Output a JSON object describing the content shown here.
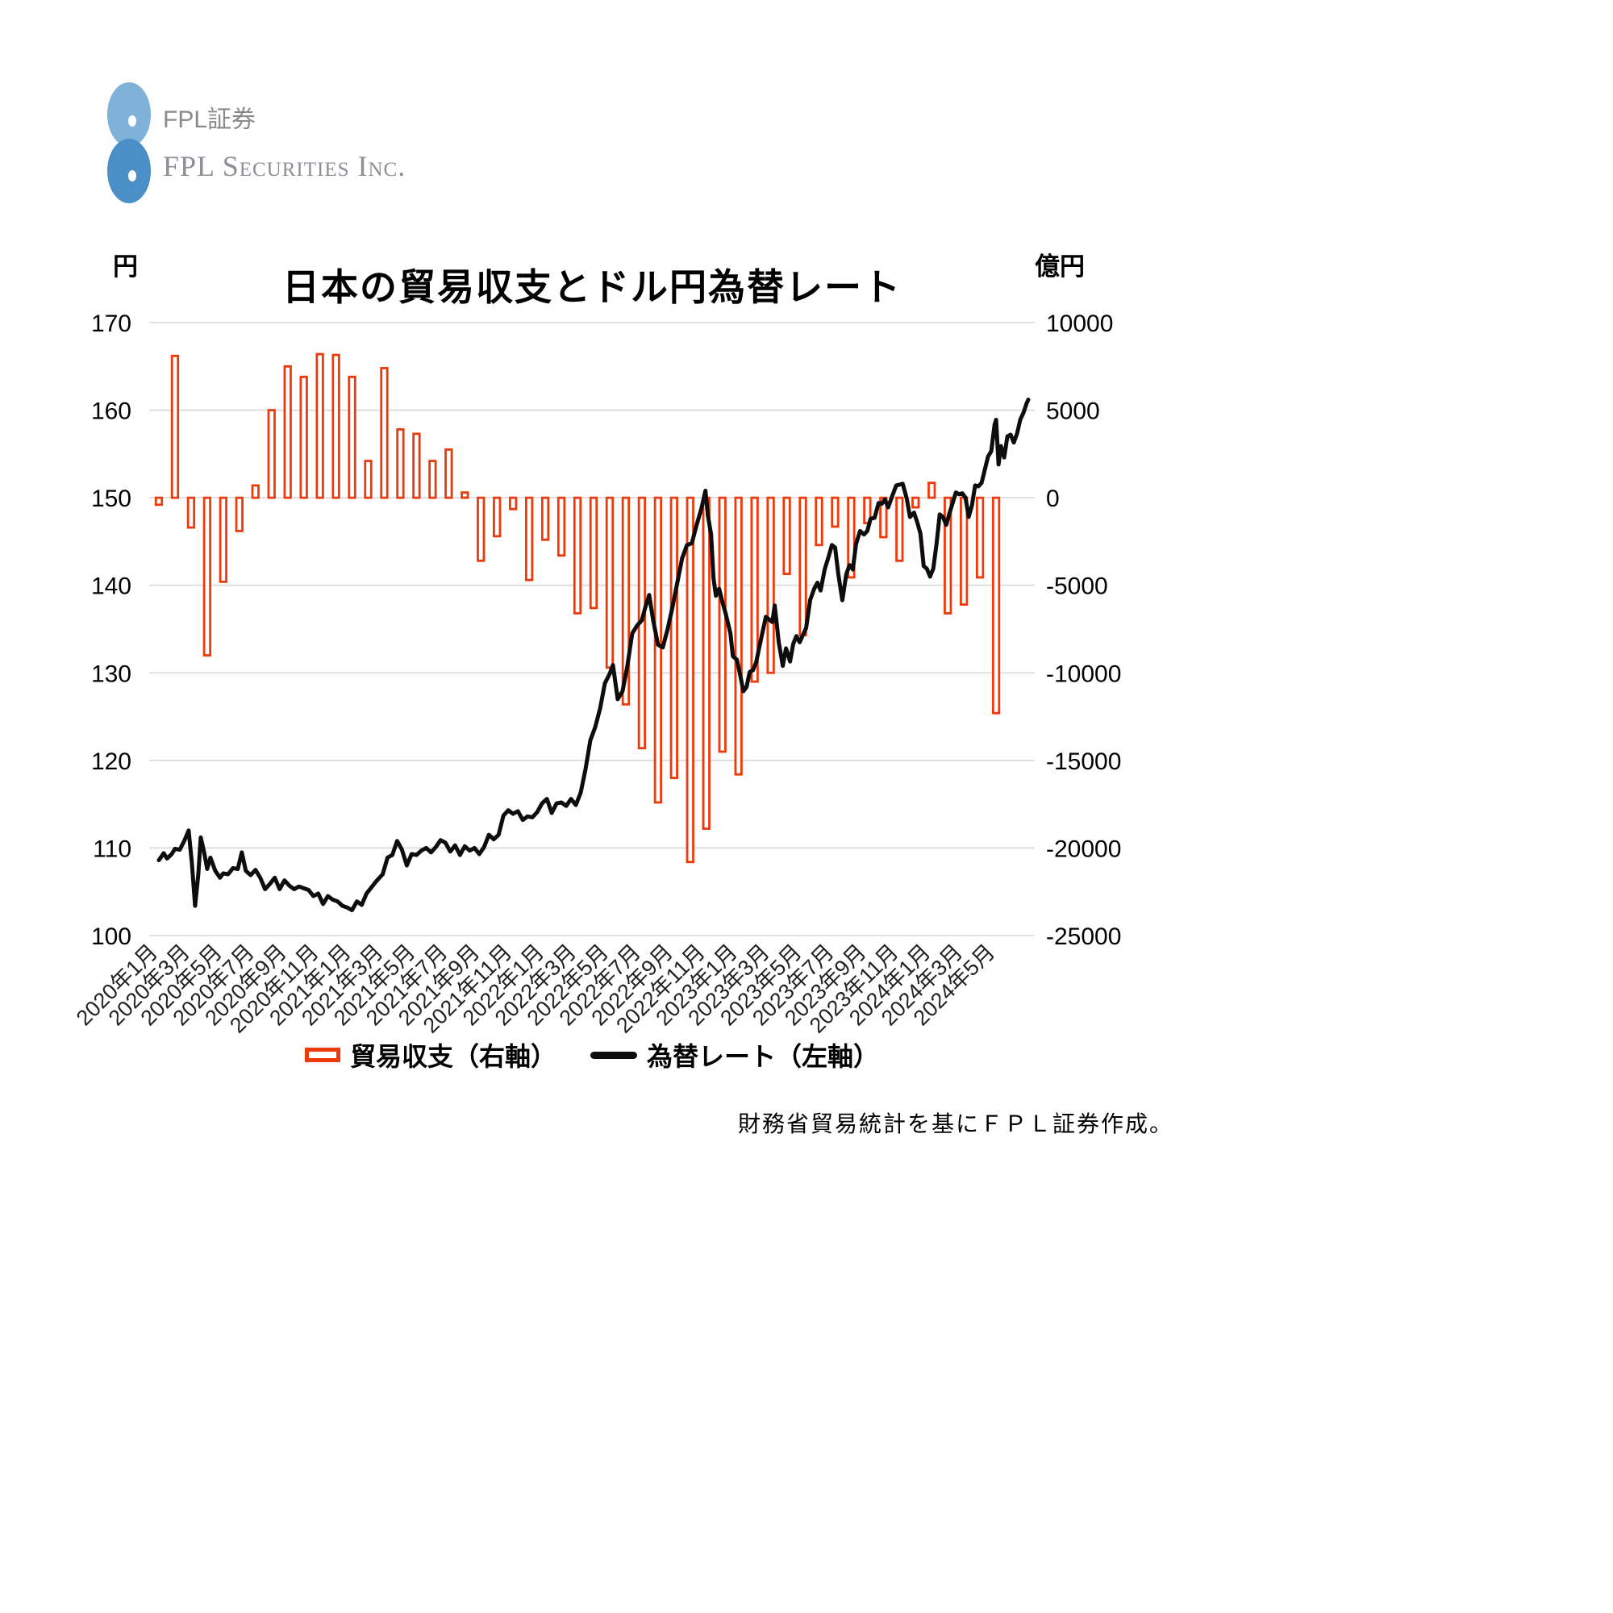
{
  "logo": {
    "jp_name": "FPL証券",
    "en_name": "FPL Securities Inc.",
    "mark_color_top": "#7fb2d9",
    "mark_color_bottom": "#4a8fc7"
  },
  "legend": {
    "bar_label": "貿易収支（右軸）",
    "line_label": "為替レート（左軸）"
  },
  "source_note": "財務省貿易統計を基にＦＰＬ証券作成。",
  "chart_data": {
    "type": "bar+line combo",
    "title": "日本の貿易収支とドル円為替レート",
    "grid": true,
    "left_axis": {
      "unit": "円",
      "min": 100,
      "max": 170,
      "ticks": [
        170,
        160,
        150,
        140,
        130,
        120,
        110,
        100
      ]
    },
    "right_axis": {
      "unit": "億円",
      "min": -25000,
      "max": 10000,
      "ticks": [
        10000,
        5000,
        0,
        -5000,
        -10000,
        -15000,
        -20000,
        -25000
      ]
    },
    "x_tick_labels": [
      "2020年1月",
      "2020年3月",
      "2020年5月",
      "2020年7月",
      "2020年9月",
      "2020年11月",
      "2021年1月",
      "2021年3月",
      "2021年5月",
      "2021年7月",
      "2021年9月",
      "2021年11月",
      "2022年1月",
      "2022年3月",
      "2022年5月",
      "2022年7月",
      "2022年9月",
      "2022年11月",
      "2023年1月",
      "2023年3月",
      "2023年5月",
      "2023年7月",
      "2023年9月",
      "2023年11月",
      "2024年1月",
      "2024年3月",
      "2024年5月"
    ],
    "bar_series": {
      "name": "貿易収支（右軸）",
      "axis": "right",
      "color": "#ee3a0b",
      "unit": "億円",
      "categories": [
        "2020-01",
        "2020-02",
        "2020-03",
        "2020-04",
        "2020-05",
        "2020-06",
        "2020-07",
        "2020-08",
        "2020-09",
        "2020-10",
        "2020-11",
        "2020-12",
        "2021-01",
        "2021-02",
        "2021-03",
        "2021-04",
        "2021-05",
        "2021-06",
        "2021-07",
        "2021-08",
        "2021-09",
        "2021-10",
        "2021-11",
        "2021-12",
        "2022-01",
        "2022-02",
        "2022-03",
        "2022-04",
        "2022-05",
        "2022-06",
        "2022-07",
        "2022-08",
        "2022-09",
        "2022-10",
        "2022-11",
        "2022-12",
        "2023-01",
        "2023-02",
        "2023-03",
        "2023-04",
        "2023-05",
        "2023-06",
        "2023-07",
        "2023-08",
        "2023-09",
        "2023-10",
        "2023-11",
        "2023-12",
        "2024-01",
        "2024-02",
        "2024-03",
        "2024-04",
        "2024-05"
      ],
      "values": [
        -400,
        8100,
        -1700,
        -9000,
        -4800,
        -1900,
        700,
        5000,
        7500,
        6900,
        8200,
        8150,
        6900,
        2100,
        7400,
        3900,
        3650,
        2100,
        2750,
        300,
        -3600,
        -2200,
        -650,
        -4700,
        -2400,
        -3300,
        -6600,
        -6300,
        -9700,
        -11800,
        -14300,
        -17400,
        -16000,
        -20800,
        -18900,
        -14500,
        -15800,
        -10500,
        -10000,
        -4350,
        -7850,
        -2700,
        -1650,
        -4550,
        -1450,
        -2250,
        -3600,
        -550,
        850,
        -6600,
        -6100,
        -4550,
        -12300
      ]
    },
    "line_series": {
      "name": "為替レート（左軸）",
      "axis": "left",
      "color": "#0d0d0d",
      "unit": "円",
      "points": [
        [
          0,
          108.6
        ],
        [
          0.3,
          109.4
        ],
        [
          0.5,
          108.8
        ],
        [
          0.8,
          109.3
        ],
        [
          1,
          109.9
        ],
        [
          1.3,
          109.8
        ],
        [
          1.6,
          110.9
        ],
        [
          1.85,
          112.0
        ],
        [
          2.05,
          108.3
        ],
        [
          2.25,
          103.4
        ],
        [
          2.45,
          107.0
        ],
        [
          2.6,
          111.2
        ],
        [
          2.8,
          109.6
        ],
        [
          3,
          107.6
        ],
        [
          3.2,
          108.9
        ],
        [
          3.5,
          107.4
        ],
        [
          3.8,
          106.6
        ],
        [
          4,
          107.1
        ],
        [
          4.3,
          107.0
        ],
        [
          4.6,
          107.7
        ],
        [
          4.9,
          107.6
        ],
        [
          5.15,
          109.5
        ],
        [
          5.4,
          107.4
        ],
        [
          5.7,
          106.9
        ],
        [
          6,
          107.5
        ],
        [
          6.3,
          106.6
        ],
        [
          6.6,
          105.3
        ],
        [
          6.9,
          105.9
        ],
        [
          7.2,
          106.6
        ],
        [
          7.5,
          105.3
        ],
        [
          7.8,
          106.3
        ],
        [
          8.1,
          105.7
        ],
        [
          8.4,
          105.3
        ],
        [
          8.7,
          105.6
        ],
        [
          9,
          105.4
        ],
        [
          9.3,
          105.2
        ],
        [
          9.6,
          104.5
        ],
        [
          9.9,
          104.8
        ],
        [
          10.2,
          103.6
        ],
        [
          10.5,
          104.5
        ],
        [
          10.8,
          104.1
        ],
        [
          11.1,
          103.9
        ],
        [
          11.4,
          103.4
        ],
        [
          11.7,
          103.2
        ],
        [
          12,
          102.9
        ],
        [
          12.3,
          103.9
        ],
        [
          12.6,
          103.5
        ],
        [
          12.9,
          104.8
        ],
        [
          13.2,
          105.5
        ],
        [
          13.5,
          106.2
        ],
        [
          13.9,
          107.0
        ],
        [
          14.2,
          108.9
        ],
        [
          14.5,
          109.2
        ],
        [
          14.8,
          110.8
        ],
        [
          15.1,
          109.8
        ],
        [
          15.4,
          108.0
        ],
        [
          15.7,
          109.3
        ],
        [
          16,
          109.2
        ],
        [
          16.3,
          109.7
        ],
        [
          16.6,
          110.0
        ],
        [
          16.9,
          109.5
        ],
        [
          17.2,
          110.1
        ],
        [
          17.5,
          110.9
        ],
        [
          17.8,
          110.6
        ],
        [
          18.1,
          109.6
        ],
        [
          18.4,
          110.3
        ],
        [
          18.7,
          109.2
        ],
        [
          19,
          110.2
        ],
        [
          19.3,
          109.7
        ],
        [
          19.6,
          110.0
        ],
        [
          19.9,
          109.3
        ],
        [
          20.2,
          110.1
        ],
        [
          20.5,
          111.5
        ],
        [
          20.8,
          111.0
        ],
        [
          21.1,
          111.5
        ],
        [
          21.4,
          113.7
        ],
        [
          21.7,
          114.3
        ],
        [
          22,
          113.9
        ],
        [
          22.3,
          114.2
        ],
        [
          22.6,
          113.2
        ],
        [
          22.9,
          113.6
        ],
        [
          23.2,
          113.5
        ],
        [
          23.5,
          114.1
        ],
        [
          23.8,
          115.1
        ],
        [
          24.1,
          115.6
        ],
        [
          24.4,
          114.0
        ],
        [
          24.7,
          115.1
        ],
        [
          25,
          115.2
        ],
        [
          25.3,
          114.8
        ],
        [
          25.6,
          115.6
        ],
        [
          25.9,
          114.9
        ],
        [
          26.2,
          116.3
        ],
        [
          26.5,
          119.0
        ],
        [
          26.8,
          122.3
        ],
        [
          27.1,
          123.8
        ],
        [
          27.4,
          125.9
        ],
        [
          27.7,
          128.8
        ],
        [
          28,
          129.9
        ],
        [
          28.2,
          130.9
        ],
        [
          28.5,
          127.0
        ],
        [
          28.8,
          127.9
        ],
        [
          29.1,
          130.8
        ],
        [
          29.4,
          134.5
        ],
        [
          29.7,
          135.4
        ],
        [
          30,
          136.0
        ],
        [
          30.2,
          137.4
        ],
        [
          30.45,
          138.9
        ],
        [
          30.7,
          136.0
        ],
        [
          31,
          133.2
        ],
        [
          31.3,
          132.9
        ],
        [
          31.6,
          135.0
        ],
        [
          31.9,
          137.5
        ],
        [
          32.2,
          140.3
        ],
        [
          32.5,
          143.1
        ],
        [
          32.8,
          144.6
        ],
        [
          33.1,
          144.8
        ],
        [
          33.4,
          146.9
        ],
        [
          33.7,
          148.8
        ],
        [
          33.95,
          150.8
        ],
        [
          34.1,
          148.0
        ],
        [
          34.3,
          145.8
        ],
        [
          34.45,
          140.8
        ],
        [
          34.6,
          138.8
        ],
        [
          34.8,
          139.6
        ],
        [
          35,
          138.1
        ],
        [
          35.2,
          136.8
        ],
        [
          35.5,
          134.5
        ],
        [
          35.65,
          131.9
        ],
        [
          35.9,
          131.5
        ],
        [
          36.1,
          129.8
        ],
        [
          36.3,
          127.9
        ],
        [
          36.5,
          128.4
        ],
        [
          36.7,
          130.1
        ],
        [
          36.9,
          130.3
        ],
        [
          37.1,
          131.2
        ],
        [
          37.3,
          133.0
        ],
        [
          37.5,
          134.7
        ],
        [
          37.7,
          136.4
        ],
        [
          37.9,
          136.1
        ],
        [
          38.1,
          135.8
        ],
        [
          38.25,
          137.7
        ],
        [
          38.5,
          133.5
        ],
        [
          38.75,
          130.8
        ],
        [
          38.95,
          132.8
        ],
        [
          39.2,
          131.3
        ],
        [
          39.4,
          133.3
        ],
        [
          39.6,
          134.2
        ],
        [
          39.8,
          133.5
        ],
        [
          40,
          134.3
        ],
        [
          40.2,
          135.1
        ],
        [
          40.45,
          138.3
        ],
        [
          40.7,
          139.6
        ],
        [
          40.9,
          140.3
        ],
        [
          41.1,
          139.4
        ],
        [
          41.35,
          141.8
        ],
        [
          41.6,
          143.3
        ],
        [
          41.8,
          144.6
        ],
        [
          42,
          144.3
        ],
        [
          42.2,
          141.3
        ],
        [
          42.45,
          138.3
        ],
        [
          42.7,
          141.3
        ],
        [
          42.9,
          142.3
        ],
        [
          43.1,
          141.8
        ],
        [
          43.3,
          144.7
        ],
        [
          43.55,
          146.2
        ],
        [
          43.8,
          145.8
        ],
        [
          44,
          146.2
        ],
        [
          44.2,
          147.6
        ],
        [
          44.45,
          147.7
        ],
        [
          44.7,
          149.4
        ],
        [
          44.9,
          149.3
        ],
        [
          45.1,
          149.8
        ],
        [
          45.3,
          148.9
        ],
        [
          45.55,
          150.2
        ],
        [
          45.8,
          151.4
        ],
        [
          46,
          151.5
        ],
        [
          46.2,
          151.6
        ],
        [
          46.45,
          149.9
        ],
        [
          46.65,
          147.8
        ],
        [
          46.9,
          148.3
        ],
        [
          47.1,
          147.2
        ],
        [
          47.3,
          145.9
        ],
        [
          47.5,
          142.2
        ],
        [
          47.7,
          141.9
        ],
        [
          47.9,
          141.0
        ],
        [
          48.1,
          141.9
        ],
        [
          48.3,
          144.7
        ],
        [
          48.5,
          148.1
        ],
        [
          48.7,
          147.8
        ],
        [
          48.9,
          146.9
        ],
        [
          49.1,
          148.2
        ],
        [
          49.3,
          149.4
        ],
        [
          49.5,
          150.6
        ],
        [
          49.7,
          150.4
        ],
        [
          49.9,
          150.5
        ],
        [
          50.1,
          150.0
        ],
        [
          50.3,
          147.8
        ],
        [
          50.5,
          149.1
        ],
        [
          50.7,
          151.4
        ],
        [
          50.9,
          151.3
        ],
        [
          51.1,
          151.7
        ],
        [
          51.3,
          153.2
        ],
        [
          51.5,
          154.7
        ],
        [
          51.7,
          155.3
        ],
        [
          51.9,
          158.3
        ],
        [
          52.0,
          158.9
        ],
        [
          52.15,
          153.8
        ],
        [
          52.3,
          155.9
        ],
        [
          52.5,
          154.6
        ],
        [
          52.7,
          157.0
        ],
        [
          52.9,
          157.2
        ],
        [
          53.1,
          156.3
        ],
        [
          53.3,
          157.3
        ],
        [
          53.5,
          158.9
        ],
        [
          53.7,
          159.7
        ],
        [
          53.9,
          160.8
        ],
        [
          54.0,
          161.2
        ]
      ]
    },
    "style": {
      "grid_color": "#d8d8d8",
      "bar_fill": "#ffffff",
      "bar_stroke": "#ee3a0b",
      "line_color": "#0d0d0d"
    }
  }
}
